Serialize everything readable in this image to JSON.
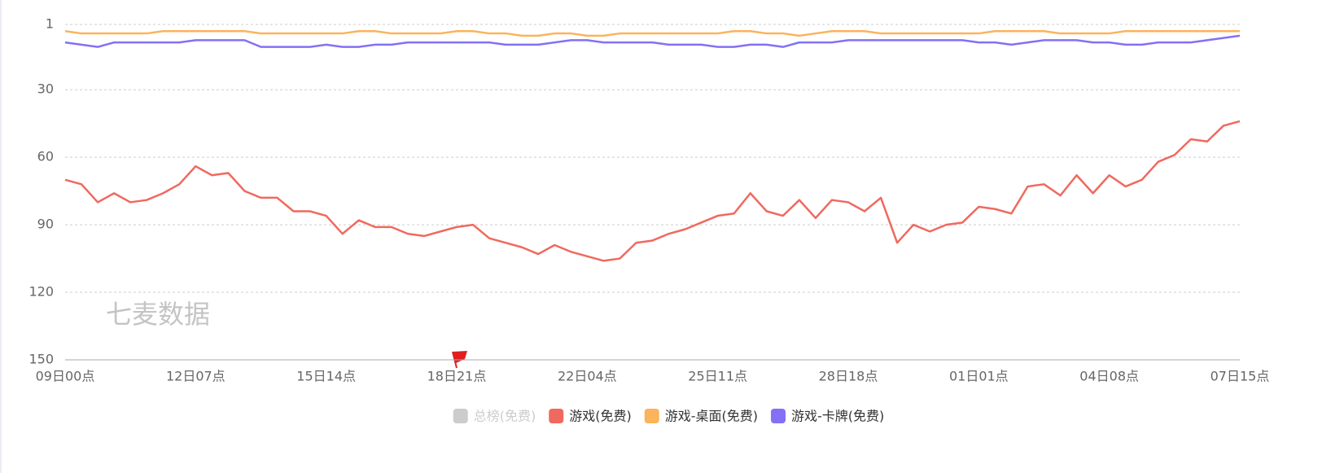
{
  "chart_data": {
    "type": "line",
    "watermark": "七麦数据",
    "categories": [
      "09日00点",
      null,
      null,
      null,
      null,
      null,
      null,
      null,
      "12日07点",
      null,
      null,
      null,
      null,
      null,
      null,
      null,
      "15日14点",
      null,
      null,
      null,
      null,
      null,
      null,
      null,
      "18日21点",
      null,
      null,
      null,
      null,
      null,
      null,
      null,
      "22日04点",
      null,
      null,
      null,
      null,
      null,
      null,
      null,
      "25日11点",
      null,
      null,
      null,
      null,
      null,
      null,
      null,
      "28日18点",
      null,
      null,
      null,
      null,
      null,
      null,
      null,
      "01日01点",
      null,
      null,
      null,
      null,
      null,
      null,
      null,
      "04日08点",
      null,
      null,
      null,
      null,
      null,
      null,
      null,
      "07日15点"
    ],
    "series": [
      {
        "name": "总榜(免费)",
        "color": "#cccccc",
        "visible": false,
        "values": [
          null,
          null,
          null,
          null,
          null,
          null,
          null,
          null,
          null,
          null,
          null,
          null,
          null,
          null,
          null,
          null,
          null,
          null,
          null,
          null,
          null,
          null,
          null,
          null,
          null,
          null,
          null,
          null,
          null,
          null,
          null,
          null,
          null,
          null,
          null,
          null,
          null,
          null,
          null,
          null,
          null,
          null,
          null,
          null,
          null,
          null,
          null,
          null,
          null,
          null,
          null,
          null,
          null,
          null,
          null,
          null,
          null,
          null,
          null,
          null,
          null,
          null,
          null,
          null,
          null,
          null,
          null,
          null,
          null,
          null,
          null,
          null,
          null
        ]
      },
      {
        "name": "游戏(免费)",
        "color": "#f0695e",
        "visible": true,
        "values": [
          70,
          72,
          80,
          76,
          80,
          79,
          76,
          72,
          64,
          68,
          67,
          75,
          78,
          78,
          84,
          84,
          86,
          94,
          88,
          91,
          91,
          94,
          95,
          93,
          91,
          90,
          96,
          98,
          100,
          103,
          99,
          102,
          104,
          106,
          105,
          98,
          97,
          94,
          92,
          89,
          86,
          85,
          76,
          84,
          86,
          79,
          87,
          79,
          80,
          84,
          78,
          98,
          90,
          93,
          90,
          89,
          82,
          83,
          85,
          73,
          72,
          77,
          68,
          76,
          68,
          73,
          70,
          62,
          59,
          52,
          53,
          46,
          44
        ]
      },
      {
        "name": "游戏-桌面(免费)",
        "color": "#fbb35c",
        "visible": true,
        "values": [
          4,
          5,
          5,
          5,
          5,
          5,
          4,
          4,
          4,
          4,
          4,
          4,
          5,
          5,
          5,
          5,
          5,
          5,
          4,
          4,
          5,
          5,
          5,
          5,
          4,
          4,
          5,
          5,
          6,
          6,
          5,
          5,
          6,
          6,
          5,
          5,
          5,
          5,
          5,
          5,
          5,
          4,
          4,
          5,
          5,
          6,
          5,
          4,
          4,
          4,
          5,
          5,
          5,
          5,
          5,
          5,
          5,
          4,
          4,
          4,
          4,
          5,
          5,
          5,
          5,
          4,
          4,
          4,
          4,
          4,
          4,
          4,
          4
        ]
      },
      {
        "name": "游戏-卡牌(免费)",
        "color": "#8470f6",
        "visible": true,
        "values": [
          9,
          10,
          11,
          9,
          9,
          9,
          9,
          9,
          8,
          8,
          8,
          8,
          11,
          11,
          11,
          11,
          10,
          11,
          11,
          10,
          10,
          9,
          9,
          9,
          9,
          9,
          9,
          10,
          10,
          10,
          9,
          8,
          8,
          9,
          9,
          9,
          9,
          10,
          10,
          10,
          11,
          11,
          10,
          10,
          11,
          9,
          9,
          9,
          8,
          8,
          8,
          8,
          8,
          8,
          8,
          8,
          9,
          9,
          10,
          9,
          8,
          8,
          8,
          9,
          9,
          10,
          10,
          9,
          9,
          9,
          8,
          7,
          6
        ]
      }
    ],
    "ylim": [
      1,
      150
    ],
    "y_inverted": true,
    "yticks": [
      1,
      30,
      60,
      90,
      120,
      150
    ],
    "grid": true
  }
}
